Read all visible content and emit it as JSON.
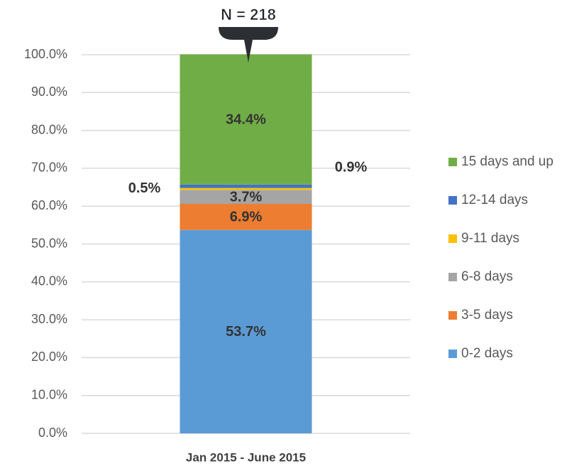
{
  "chart_data": {
    "type": "stacked_bar",
    "annotation": "N = 218",
    "categories": [
      "Jan 2015 - June 2015"
    ],
    "series": [
      {
        "name": "0-2 days",
        "color": "#5b9bd5",
        "values": [
          53.7
        ],
        "value_labels": [
          "53.7%"
        ]
      },
      {
        "name": "3-5 days",
        "color": "#ed7d31",
        "values": [
          6.9
        ],
        "value_labels": [
          "6.9%"
        ]
      },
      {
        "name": "6-8 days",
        "color": "#a5a5a5",
        "values": [
          3.7
        ],
        "value_labels": [
          "3.7%"
        ]
      },
      {
        "name": "9-11 days",
        "color": "#ffc000",
        "values": [
          0.5
        ],
        "value_labels": [
          "0.5%"
        ]
      },
      {
        "name": "12-14 days",
        "color": "#4472c4",
        "values": [
          0.9
        ],
        "value_labels": [
          "0.9%"
        ]
      },
      {
        "name": "15 days and up",
        "color": "#70ad47",
        "values": [
          34.4
        ],
        "value_labels": [
          "34.4%"
        ]
      }
    ],
    "ylim": [
      0,
      100
    ],
    "yticks": [
      {
        "value": 0,
        "label": "0.0%"
      },
      {
        "value": 10,
        "label": "10.0%"
      },
      {
        "value": 20,
        "label": "20.0%"
      },
      {
        "value": 30,
        "label": "30.0%"
      },
      {
        "value": 40,
        "label": "40.0%"
      },
      {
        "value": 50,
        "label": "50.0%"
      },
      {
        "value": 60,
        "label": "60.0%"
      },
      {
        "value": 70,
        "label": "70.0%"
      },
      {
        "value": 80,
        "label": "80.0%"
      },
      {
        "value": 90,
        "label": "90.0%"
      },
      {
        "value": 100,
        "label": "100.0%"
      }
    ],
    "grid": true,
    "legend": "right"
  }
}
